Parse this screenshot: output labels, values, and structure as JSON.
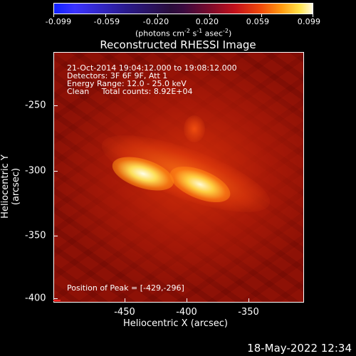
{
  "colorbar": {
    "ticks": [
      "-0.099",
      "-0.059",
      "-0.020",
      "0.020",
      "0.059",
      "0.099"
    ],
    "units_prefix": "(photons cm",
    "units_sup1": "-2",
    "units_mid1": " s",
    "units_sup2": "-1",
    "units_mid2": " asec",
    "units_sup3": "-2",
    "units_suffix": ")"
  },
  "title": "Reconstructed RHESSI Image",
  "overlay": {
    "line1": "21-Oct-2014 19:04:12.000 to 19:08:12.000",
    "line2": "Detectors: 3F 6F 9F, Att 1",
    "line3": "Energy Range: 12.0 - 25.0 keV",
    "line4": "Clean     Total counts: 8.92E+04",
    "peak": "Position of Peak = [-429,-296]"
  },
  "axes": {
    "xlabel": "Heliocentric X (arcsec)",
    "ylabel": "Heliocentric Y (arcsec)",
    "xticks": [
      "-450",
      "-400",
      "-350"
    ],
    "yticks": [
      "-250",
      "-300",
      "-350",
      "-400"
    ]
  },
  "footer": "18-May-2022 12:34"
}
